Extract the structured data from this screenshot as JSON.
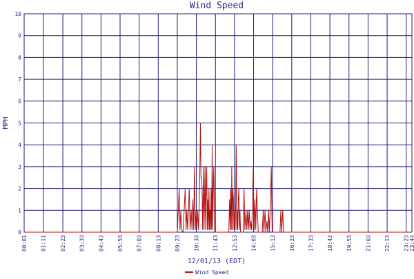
{
  "chart_data": {
    "type": "line",
    "title": "Wind Speed",
    "xlabel": "12/01/13 (EDT)",
    "ylabel": "MPH",
    "ylim": [
      0,
      10
    ],
    "yticks": [
      "0",
      "1",
      "2",
      "3",
      "4",
      "5",
      "6",
      "7",
      "8",
      "9",
      "10"
    ],
    "xlim": [
      "00:01",
      "23:44"
    ],
    "xticks": [
      "00:01",
      "01:11",
      "02:23",
      "03:33",
      "04:43",
      "05:53",
      "07:03",
      "08:13",
      "09:23",
      "10:33",
      "11:43",
      "12:53",
      "14:03",
      "15:13",
      "16:23",
      "17:33",
      "18:43",
      "19:53",
      "21:03",
      "22:13",
      "23:23",
      "23:44"
    ],
    "grid": true,
    "legend": "bottom",
    "series": [
      {
        "name": "Wind Speed",
        "color": "#b01010",
        "points": [
          [
            "09:23",
            0
          ],
          [
            "09:30",
            2
          ],
          [
            "09:33",
            0.1
          ],
          [
            "09:36",
            1
          ],
          [
            "09:39",
            0.1
          ],
          [
            "09:44",
            0
          ],
          [
            "09:52",
            2
          ],
          [
            "09:55",
            0.1
          ],
          [
            "09:58",
            1
          ],
          [
            "10:01",
            0.1
          ],
          [
            "10:04",
            1
          ],
          [
            "10:07",
            2
          ],
          [
            "10:10",
            0.1
          ],
          [
            "10:14",
            1
          ],
          [
            "10:17",
            0.1
          ],
          [
            "10:20",
            1.5
          ],
          [
            "10:23",
            0.1
          ],
          [
            "10:26",
            3
          ],
          [
            "10:29",
            0.1
          ],
          [
            "10:32",
            1
          ],
          [
            "10:35",
            0.1
          ],
          [
            "10:38",
            1
          ],
          [
            "10:41",
            0.1
          ],
          [
            "10:44",
            1.5
          ],
          [
            "10:46",
            3
          ],
          [
            "10:48",
            5
          ],
          [
            "10:50",
            2.5
          ],
          [
            "10:52",
            2.5
          ],
          [
            "10:54",
            2
          ],
          [
            "10:56",
            0.1
          ],
          [
            "10:59",
            3
          ],
          [
            "11:01",
            0.1
          ],
          [
            "11:03",
            1.5
          ],
          [
            "11:05",
            3
          ],
          [
            "11:07",
            0.1
          ],
          [
            "11:09",
            2
          ],
          [
            "11:11",
            3
          ],
          [
            "11:13",
            0.1
          ],
          [
            "11:15",
            1.5
          ],
          [
            "11:17",
            0.1
          ],
          [
            "11:19",
            2
          ],
          [
            "11:21",
            0.1
          ],
          [
            "11:23",
            1
          ],
          [
            "11:25",
            0.1
          ],
          [
            "11:27",
            2
          ],
          [
            "11:29",
            0.1
          ],
          [
            "11:31",
            4
          ],
          [
            "11:33",
            0.1
          ],
          [
            "11:35",
            2
          ],
          [
            "11:37",
            3
          ],
          [
            "11:40",
            0
          ],
          [
            "11:44",
            0
          ],
          [
            "12:32",
            0
          ],
          [
            "12:35",
            1.5
          ],
          [
            "12:37",
            0.1
          ],
          [
            "12:39",
            2
          ],
          [
            "12:41",
            0.1
          ],
          [
            "12:43",
            3
          ],
          [
            "12:45",
            0.1
          ],
          [
            "12:47",
            2
          ],
          [
            "12:49",
            1.5
          ],
          [
            "12:51",
            0.1
          ],
          [
            "12:53",
            1
          ],
          [
            "12:55",
            0.1
          ],
          [
            "12:57",
            1
          ],
          [
            "12:59",
            4
          ],
          [
            "13:01",
            0.1
          ],
          [
            "13:03",
            1
          ],
          [
            "13:05",
            0.1
          ],
          [
            "13:07",
            1.5
          ],
          [
            "13:09",
            2
          ],
          [
            "13:11",
            0.1
          ],
          [
            "13:13",
            1
          ],
          [
            "13:15",
            0
          ],
          [
            "13:25",
            0
          ],
          [
            "13:28",
            2
          ],
          [
            "13:31",
            0.1
          ],
          [
            "13:35",
            1
          ],
          [
            "13:38",
            0.1
          ],
          [
            "13:41",
            1
          ],
          [
            "13:44",
            0.1
          ],
          [
            "13:47",
            1
          ],
          [
            "13:50",
            0.1
          ],
          [
            "13:53",
            0.5
          ],
          [
            "13:56",
            0.1
          ],
          [
            "13:59",
            1.5
          ],
          [
            "14:02",
            3
          ],
          [
            "14:05",
            0.1
          ],
          [
            "14:08",
            1.5
          ],
          [
            "14:11",
            0.1
          ],
          [
            "14:14",
            2
          ],
          [
            "14:17",
            1
          ],
          [
            "14:20",
            0
          ],
          [
            "14:35",
            0
          ],
          [
            "14:38",
            1
          ],
          [
            "14:41",
            0
          ],
          [
            "14:45",
            1
          ],
          [
            "14:48",
            0
          ],
          [
            "14:52",
            0.5
          ],
          [
            "14:55",
            0
          ],
          [
            "14:58",
            1
          ],
          [
            "15:01",
            0
          ],
          [
            "15:05",
            1.5
          ],
          [
            "15:08",
            3
          ],
          [
            "15:11",
            0
          ],
          [
            "15:15",
            0
          ],
          [
            "15:40",
            0
          ],
          [
            "15:43",
            1
          ],
          [
            "15:46",
            0
          ],
          [
            "15:50",
            1
          ],
          [
            "15:53",
            0
          ],
          [
            "15:58",
            0
          ]
        ]
      }
    ]
  }
}
